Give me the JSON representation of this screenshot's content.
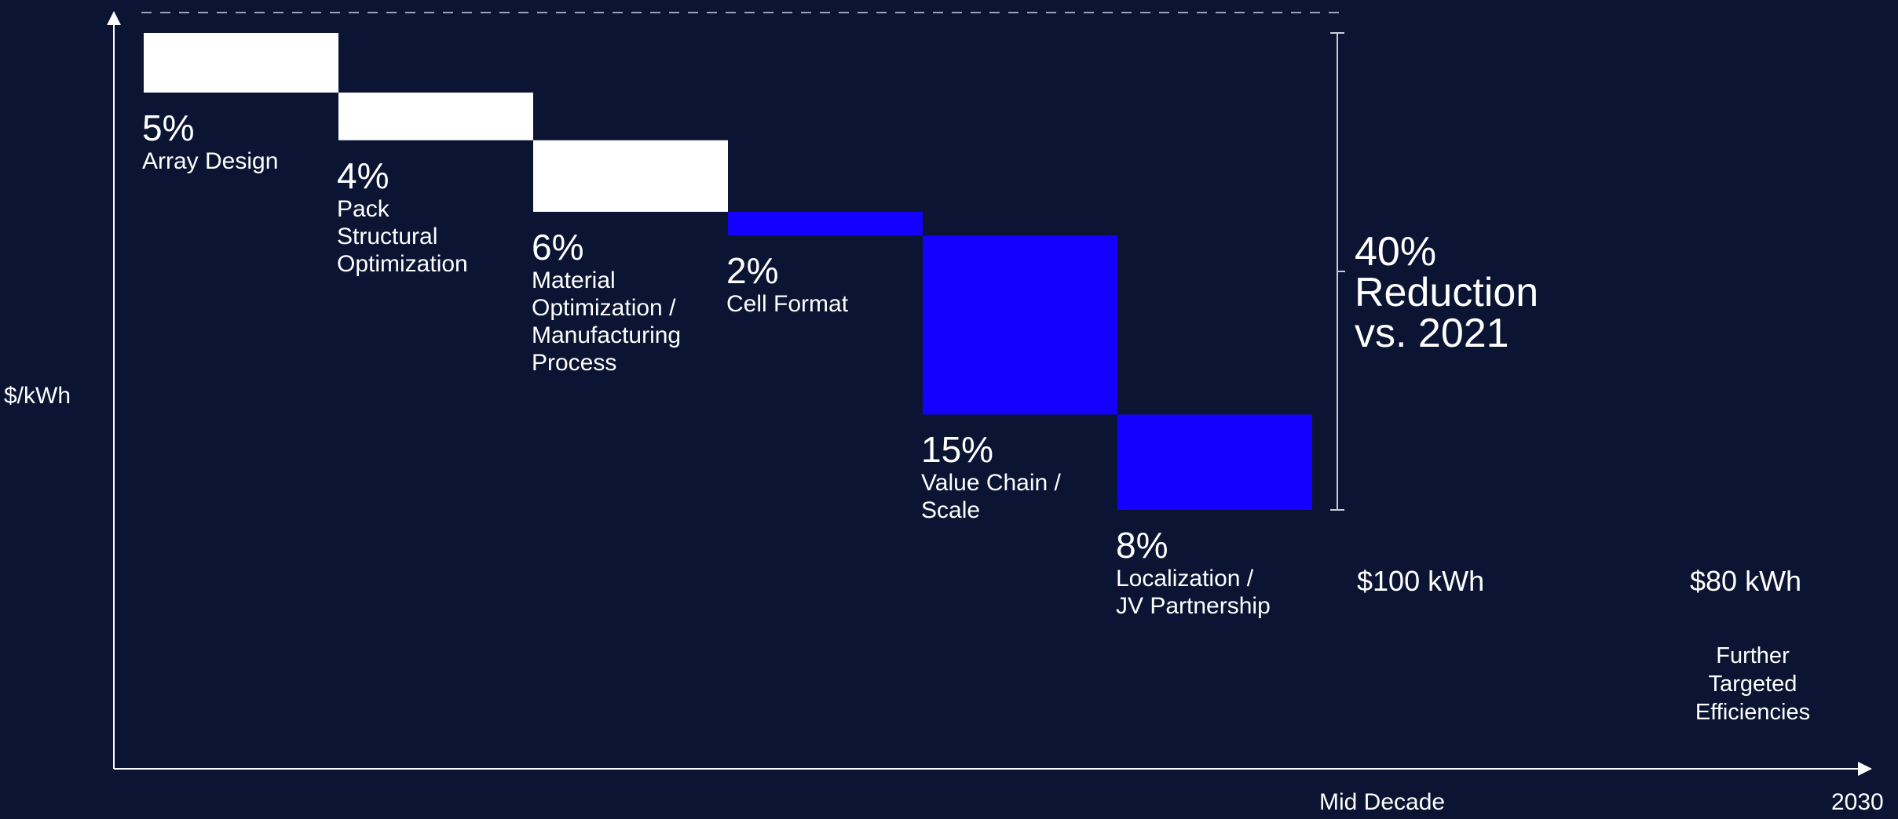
{
  "chart_data": {
    "type": "bar",
    "subtype": "waterfall",
    "ylabel": "$/kWh",
    "categories": [
      "Array Design",
      "Pack\nStructural\nOptimization",
      "Material\nOptimization /\nManufacturing\nProcess",
      "Cell Format",
      "Value Chain /\nScale",
      "Localization /\nJV Partnership"
    ],
    "values": [
      5,
      4,
      6,
      2,
      15,
      8
    ],
    "value_labels": [
      "5%",
      "4%",
      "6%",
      "2%",
      "15%",
      "8%"
    ],
    "colors": [
      "#ffffff",
      "#ffffff",
      "#ffffff",
      "#1400ff",
      "#1400ff",
      "#1400ff"
    ],
    "start": 100,
    "unit": "%",
    "total": {
      "value": 40,
      "label": "40%\nReduction\nvs. 2021"
    },
    "x_axis_labels": [
      "Mid Decade",
      "2030"
    ],
    "price_labels": [
      "$100 kWh",
      "$80 kWh"
    ],
    "annotation": "Further\nTargeted\nEfficiencies",
    "baseline_dashed": true
  }
}
